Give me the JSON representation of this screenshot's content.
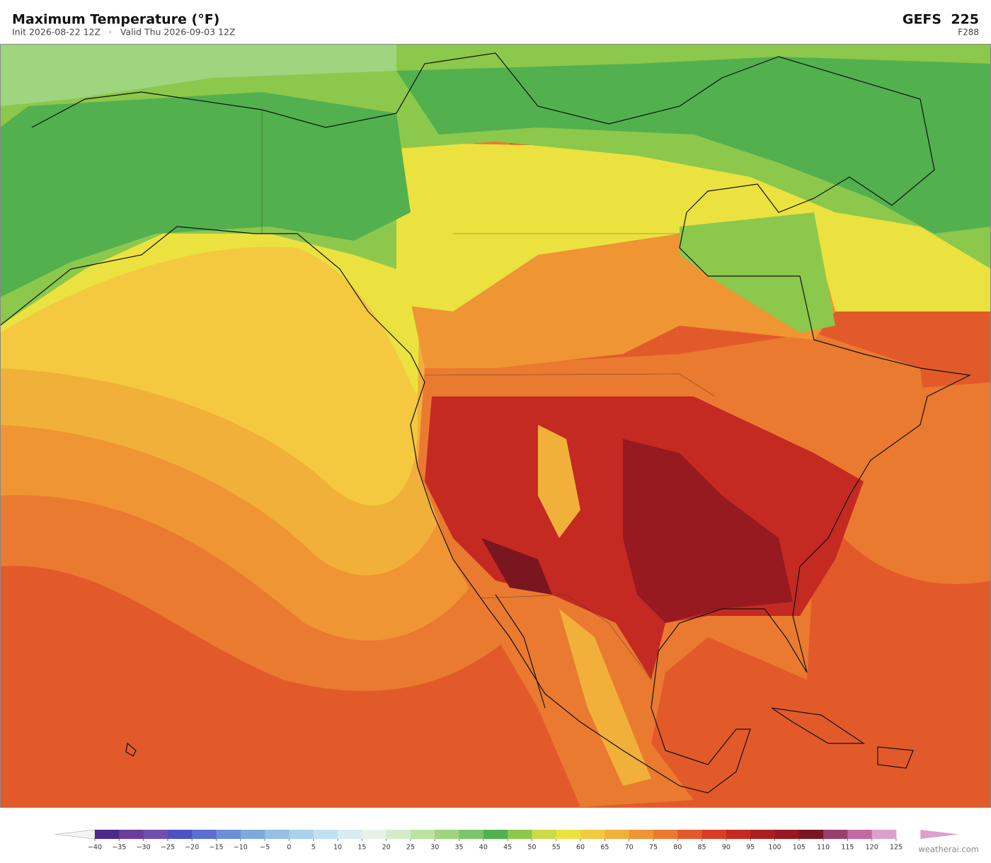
{
  "header": {
    "title": "Maximum Temperature  (°F)",
    "subtitle": "Init 2026-08-22 12Z   ·   Valid Thu 2026-09-03 12Z",
    "model": "GEFS  225",
    "forecast_hour": "F288"
  },
  "colorbar": {
    "ticks": [
      {
        "value": -40,
        "label": "−40"
      },
      {
        "value": -35,
        "label": "−35"
      },
      {
        "value": -30,
        "label": "−30"
      },
      {
        "value": -25,
        "label": "−25"
      },
      {
        "value": -20,
        "label": "−20"
      },
      {
        "value": -15,
        "label": "−15"
      },
      {
        "value": -10,
        "label": "−10"
      },
      {
        "value": -5,
        "label": "−5"
      },
      0,
      5,
      10,
      15,
      20,
      25,
      30,
      35,
      40,
      45,
      50,
      55,
      60,
      65,
      70,
      75,
      80,
      85,
      90,
      95,
      100,
      105,
      110,
      115,
      120,
      125
    ],
    "colors": [
      "#4b2a8c",
      "#6a3d9a",
      "#6f4fb0",
      "#4a52c4",
      "#5a6fd0",
      "#6b8fd6",
      "#7fa8dc",
      "#95bfe3",
      "#aad2eb",
      "#c0e2f0",
      "#d8ecf2",
      "#e6f3e6",
      "#d4eccb",
      "#bde3a0",
      "#9fd57f",
      "#7cc56a",
      "#52b04f",
      "#8cc84b",
      "#c9dc45",
      "#ebe240",
      "#f4c93f",
      "#f1b03a",
      "#ef9534",
      "#ea7a30",
      "#e35a2a",
      "#d93e25",
      "#c42a22",
      "#ac1f20",
      "#961a1f",
      "#7a1620",
      "#9c3f6e",
      "#c26aa3",
      "#dca0cf"
    ],
    "under_color": "#f4f4f4",
    "over_color": "#dca0cf"
  },
  "footer": {
    "credit": "weatherai.com"
  }
}
